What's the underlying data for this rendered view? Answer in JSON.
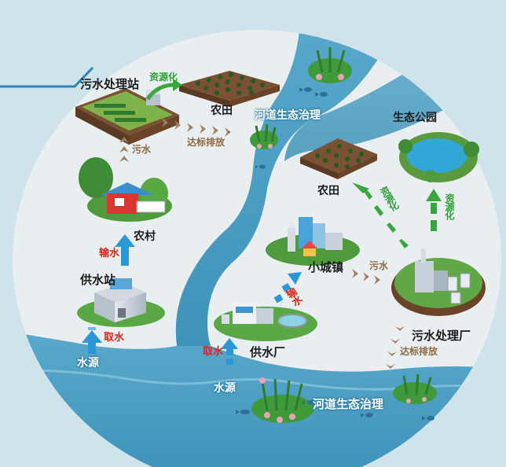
{
  "labels": {
    "wastewater_station": "污水处理站",
    "resource_top": "资源化",
    "farmland_top": "农田",
    "river_eco_top": "河道生态治理",
    "discharge_top": "达标排放",
    "sewage_left": "污水",
    "village": "农村",
    "transport_left": "输水",
    "water_supply_station": "供水站",
    "intake_left": "取水",
    "water_source_left": "水源",
    "eco_park": "生态公园",
    "farmland_right": "农田",
    "resource_right_a": "资源化",
    "resource_right_b": "资源化",
    "small_town": "小城镇",
    "sewage_right": "污水",
    "transport_right": "输水",
    "intake_right": "取水",
    "water_plant": "供水厂",
    "wastewater_plant": "污水处理厂",
    "discharge_bottom": "达标排放",
    "water_source_bottom": "水源",
    "river_eco_bottom": "河道生态治理"
  },
  "colors": {
    "background": "#cfe3ea",
    "circle_fill": "#e9eef0",
    "river": "#4f9fc3",
    "blue_arrow": "#2b96d8",
    "brown_arrow": "#a08062",
    "green_arrow": "#3aa63e",
    "red_text": "#e02418"
  },
  "icons": [
    "building-icon",
    "house-icon",
    "tree-icon",
    "farm-field-icon",
    "reed-plant-icon",
    "fish-icon",
    "lake-icon",
    "factory-icon",
    "tank-icon"
  ]
}
